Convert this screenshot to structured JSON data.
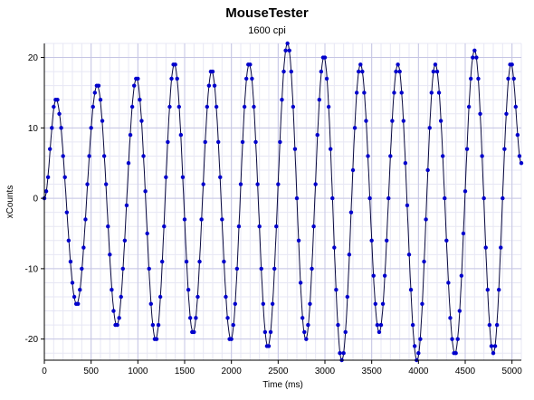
{
  "chart_data": {
    "type": "scatter",
    "title": "MouseTester",
    "subtitle": "1600 cpi",
    "xlabel": "Time (ms)",
    "ylabel": "xCounts",
    "xlim": [
      0,
      5100
    ],
    "ylim": [
      -23,
      22
    ],
    "xticks": [
      0,
      500,
      1000,
      1500,
      2000,
      2500,
      3000,
      3500,
      4000,
      4500,
      5000
    ],
    "yticks": [
      -20,
      -10,
      0,
      10,
      20
    ],
    "x_minor_step": 100,
    "y_minor_step": 2,
    "grid": true,
    "legend": "none",
    "colors": {
      "points": "#0000cc",
      "fit_line": "#0a0a40",
      "grid_major": "#c6c6e4",
      "grid_minor": "#e7e7f4",
      "axis": "#000000"
    },
    "series": [
      {
        "sample_interval_ms": 20,
        "extrema": [
          {
            "x": 0,
            "y": 0
          },
          {
            "x": 125,
            "y": 14
          },
          {
            "x": 345,
            "y": -15
          },
          {
            "x": 565,
            "y": 16
          },
          {
            "x": 775,
            "y": -18
          },
          {
            "x": 985,
            "y": 17
          },
          {
            "x": 1190,
            "y": -20
          },
          {
            "x": 1390,
            "y": 19
          },
          {
            "x": 1590,
            "y": -19
          },
          {
            "x": 1790,
            "y": 18
          },
          {
            "x": 1995,
            "y": -20
          },
          {
            "x": 2190,
            "y": 19
          },
          {
            "x": 2390,
            "y": -21
          },
          {
            "x": 2600,
            "y": 22
          },
          {
            "x": 2795,
            "y": -20
          },
          {
            "x": 2990,
            "y": 20
          },
          {
            "x": 3180,
            "y": -23
          },
          {
            "x": 3380,
            "y": 19
          },
          {
            "x": 3580,
            "y": -19
          },
          {
            "x": 3780,
            "y": 19
          },
          {
            "x": 3985,
            "y": -23
          },
          {
            "x": 4180,
            "y": 19
          },
          {
            "x": 4390,
            "y": -22
          },
          {
            "x": 4600,
            "y": 21
          },
          {
            "x": 4800,
            "y": -22
          },
          {
            "x": 4990,
            "y": 19
          },
          {
            "x": 5100,
            "y": 5
          }
        ]
      }
    ]
  }
}
